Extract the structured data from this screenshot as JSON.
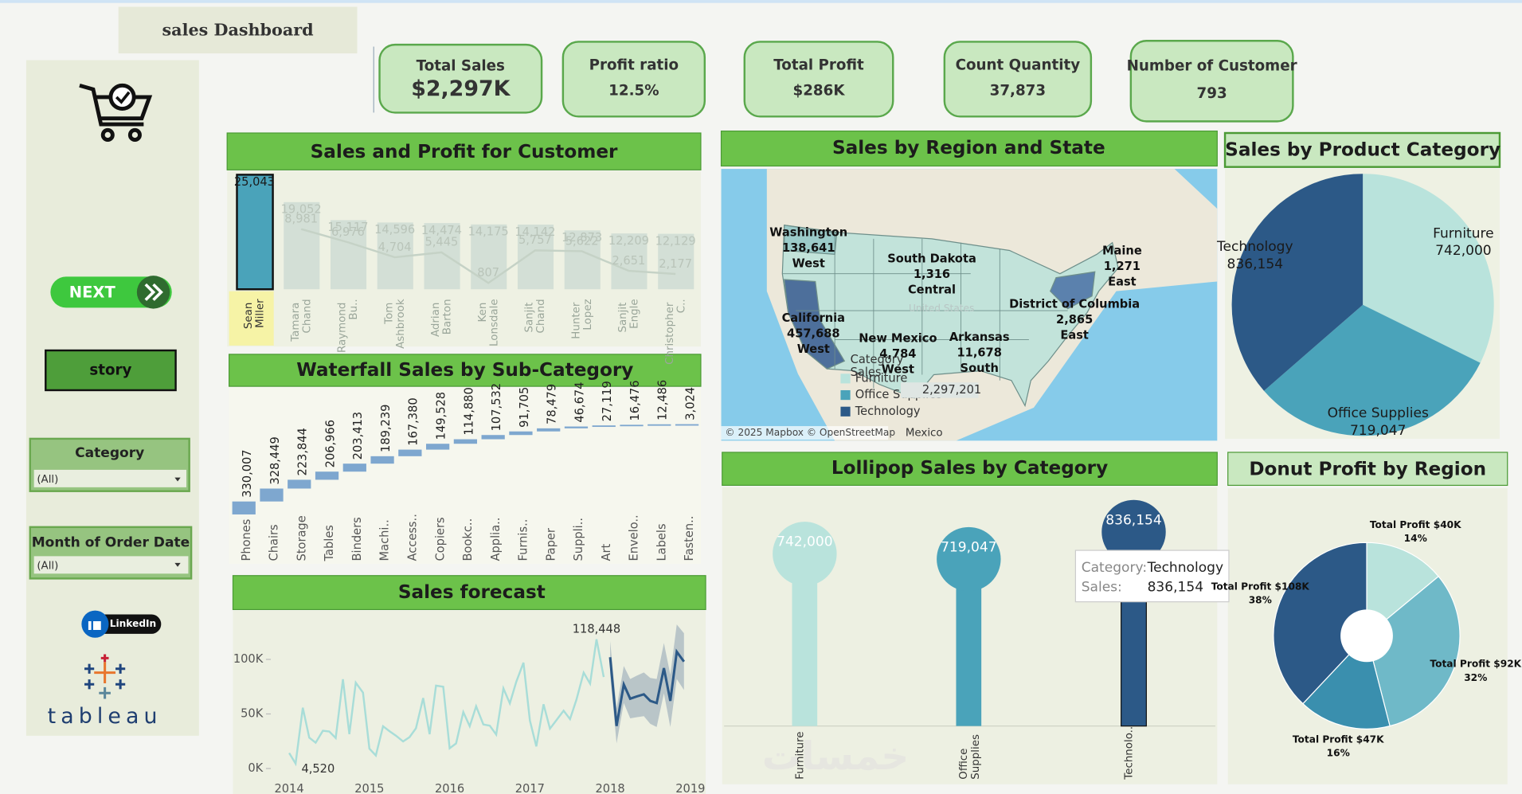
{
  "header": {
    "title": "sales Dashboard"
  },
  "kpis": [
    {
      "label": "Total Sales",
      "value": "$2,297K"
    },
    {
      "label": "Profit ratio",
      "value": "12.5%"
    },
    {
      "label": "Total Profit",
      "value": "$286K"
    },
    {
      "label": "Count Quantity",
      "value": "37,873"
    },
    {
      "label": "Number of Customer",
      "value": "793"
    }
  ],
  "sidebar": {
    "next": "NEXT",
    "story": "story",
    "filters": [
      {
        "label": "Category",
        "value": "(All)"
      },
      {
        "label": "Month of Order Date",
        "value": "(All)"
      }
    ],
    "linkedin": "LinkedIn",
    "brand": "tableau"
  },
  "watermark": "خمسات",
  "map": {
    "title": "Sales by Region and State",
    "labels": [
      {
        "name": "Washington",
        "value": "138,641",
        "region": "West"
      },
      {
        "name": "South Dakota",
        "value": "1,316",
        "region": "Central"
      },
      {
        "name": "Maine",
        "value": "1,271",
        "region": "East"
      },
      {
        "name": "California",
        "value": "457,688",
        "region": "West"
      },
      {
        "name": "District of Columbia",
        "value": "2,865",
        "region": "East"
      },
      {
        "name": "New Mexico",
        "value": "4,784",
        "region": "West"
      },
      {
        "name": "Arkansas",
        "value": "11,678",
        "region": "South"
      }
    ],
    "legend": {
      "title": "Category",
      "measure": "Sales",
      "items": [
        {
          "name": "Furniture",
          "color": "#b9e3dc"
        },
        {
          "name": "Office Supplies",
          "color": "#4aa3ba"
        },
        {
          "name": "Technology",
          "color": "#2c5987"
        }
      ],
      "total": "2,297,201"
    },
    "places": [
      "United States",
      "Mexico"
    ],
    "attribution": "© 2025 Mapbox © OpenStreetMap"
  },
  "chart_data": [
    {
      "type": "bar_line",
      "title": "Sales and Profit for Customer",
      "categories": [
        "Sean Miller",
        "Tamara Chand",
        "Raymond Bu..",
        "Tom Ashbrook",
        "Adrian Barton",
        "Ken Lonsdale",
        "Sanjit Chand",
        "Hunter Lopez",
        "Sanjit Engle",
        "Christopher C.."
      ],
      "series": [
        {
          "colors": [
            "#4aa3ba",
            "#d3dfd6",
            "#d3dfd6",
            "#d3dfd6",
            "#d3dfd6",
            "#d3dfd6",
            "#d3dfd6",
            "#d3dfd6",
            "#d3dfd6",
            "#d3dfd6"
          ],
          "values": [
            25043,
            19052,
            15117,
            14596,
            14474,
            14175,
            14142,
            12873,
            12209,
            12129
          ],
          "value_labels": [
            "25,043",
            "19,052",
            "15,117",
            "14,596",
            "14,474",
            "14,175",
            "14,142",
            "12,873",
            "12,209",
            "12,129"
          ]
        },
        {
          "type": "line",
          "color": "#c5d2c6",
          "values": [
            null,
            8981,
            6976,
            4704,
            5445,
            807,
            5757,
            5622,
            2651,
            2177
          ],
          "value_labels": [
            null,
            "8,981",
            "6,976",
            "4,704",
            "5,445",
            "807",
            "5,757",
            "5,622",
            "2,651",
            "2,177"
          ]
        }
      ]
    },
    {
      "type": "waterfall",
      "title": "Waterfall Sales by Sub-Category",
      "color": "#7ea7cf",
      "categories": [
        "Phones",
        "Chairs",
        "Storage",
        "Tables",
        "Binders",
        "Machi..",
        "Access..",
        "Copiers",
        "Bookc..",
        "Applia..",
        "Furnis..",
        "Paper",
        "Suppli..",
        "Art",
        "Envelo..",
        "Labels",
        "Fasten.."
      ],
      "values": [
        330007,
        328449,
        223844,
        206966,
        203413,
        189239,
        167380,
        149528,
        114880,
        107532,
        91705,
        78479,
        46674,
        27119,
        16476,
        12486,
        3024
      ],
      "value_labels": [
        "330,007",
        "328,449",
        "223,844",
        "206,966",
        "203,413",
        "189,239",
        "167,380",
        "149,528",
        "114,880",
        "107,532",
        "91,705",
        "78,479",
        "46,674",
        "27,119",
        "16,476",
        "12,486",
        "3,024"
      ]
    },
    {
      "type": "line",
      "title": "Sales forecast",
      "series": [
        {
          "color": "#a8ddd8",
          "x": [
            2014.0,
            2014.08,
            2014.17,
            2014.25,
            2014.33,
            2014.42,
            2014.5,
            2014.58,
            2014.67,
            2014.75,
            2014.83,
            2014.92,
            2015.0,
            2015.08,
            2015.17,
            2015.25,
            2015.33,
            2015.42,
            2015.5,
            2015.58,
            2015.67,
            2015.75,
            2015.83,
            2015.92,
            2016.0,
            2016.08,
            2016.17,
            2016.25,
            2016.33,
            2016.42,
            2016.5,
            2016.58,
            2016.67,
            2016.75,
            2016.83,
            2016.92,
            2017.0,
            2017.08,
            2017.17,
            2017.25,
            2017.33,
            2017.42,
            2017.5,
            2017.58,
            2017.67,
            2017.75,
            2017.83,
            2017.92
          ],
          "values": [
            14237,
            4520,
            55691,
            28295,
            23648,
            34595,
            33946,
            27909,
            81777,
            31453,
            78629,
            69546,
            18174,
            11951,
            38726,
            34195,
            30132,
            24797,
            28765,
            36898,
            64596,
            31405,
            75973,
            74920,
            18542,
            22979,
            51716,
            38750,
            56988,
            40345,
            39262,
            31115,
            73410,
            59688,
            79412,
            96999,
            43971,
            20301,
            58872,
            36522,
            44261,
            52982,
            45264,
            63121,
            87867,
            77777,
            118448,
            83829
          ]
        },
        {
          "color": "#2c5987",
          "band_color": "#8ea3b3",
          "x": [
            2018.0,
            2018.08,
            2018.17,
            2018.25,
            2018.33,
            2018.42,
            2018.5,
            2018.58,
            2018.67,
            2018.75,
            2018.83,
            2018.92
          ],
          "values": [
            102000,
            39000,
            77000,
            64000,
            66000,
            68000,
            62000,
            60000,
            92000,
            62000,
            107000,
            98000
          ],
          "lower": [
            87000,
            23000,
            60000,
            46000,
            47000,
            48000,
            41000,
            38000,
            69000,
            38000,
            82000,
            72000
          ],
          "upper": [
            117000,
            55000,
            94000,
            82000,
            85000,
            88000,
            83000,
            82000,
            115000,
            86000,
            132000,
            124000
          ]
        }
      ],
      "xlim": [
        2013.36,
        2019.13
      ],
      "xticks": [
        2014,
        2015,
        2016,
        2017,
        2018,
        2019
      ],
      "ylim": [
        -10000,
        135000
      ],
      "yticks": [
        {
          "value": 0,
          "label": "0K"
        },
        {
          "value": 50000,
          "label": "50K"
        },
        {
          "value": 100000,
          "label": "100K"
        }
      ],
      "annotations": [
        "4,520",
        "118,448"
      ]
    },
    {
      "type": "pie",
      "title": "Sales by Product Category",
      "categories": [
        "Furniture",
        "Office Supplies",
        "Technology"
      ],
      "values": [
        742000,
        719047,
        836154
      ],
      "value_labels": [
        "742,000",
        "719,047",
        "836,154"
      ],
      "colors": [
        "#b9e3dc",
        "#4aa3ba",
        "#2c5987"
      ]
    },
    {
      "type": "lollipop",
      "title": "Lollipop Sales by Category",
      "categories": [
        "Furniture",
        "Office Supplies",
        "Technolo.."
      ],
      "values": [
        742000,
        719047,
        836154
      ],
      "value_labels": [
        "742,000",
        "719,047",
        "836,154"
      ],
      "colors": [
        "#b9e3dc",
        "#4aa3ba",
        "#2c5987"
      ],
      "tooltip": {
        "category_label": "Category:",
        "category": "Technology",
        "sales_label": "Sales:",
        "sales": "836,154"
      }
    },
    {
      "type": "donut",
      "title": "Donut Profit by Region",
      "values": [
        14,
        32,
        16,
        38
      ],
      "value_labels": [
        "14%",
        "32%",
        "16%",
        "38%"
      ],
      "labels": [
        "Total Profit $40K",
        "Total Profit $92K",
        "Total Profit $47K",
        "Total Profit $108K"
      ],
      "colors": [
        "#b9e3dc",
        "#6fb9c8",
        "#3a8fae",
        "#2c5987"
      ]
    }
  ]
}
